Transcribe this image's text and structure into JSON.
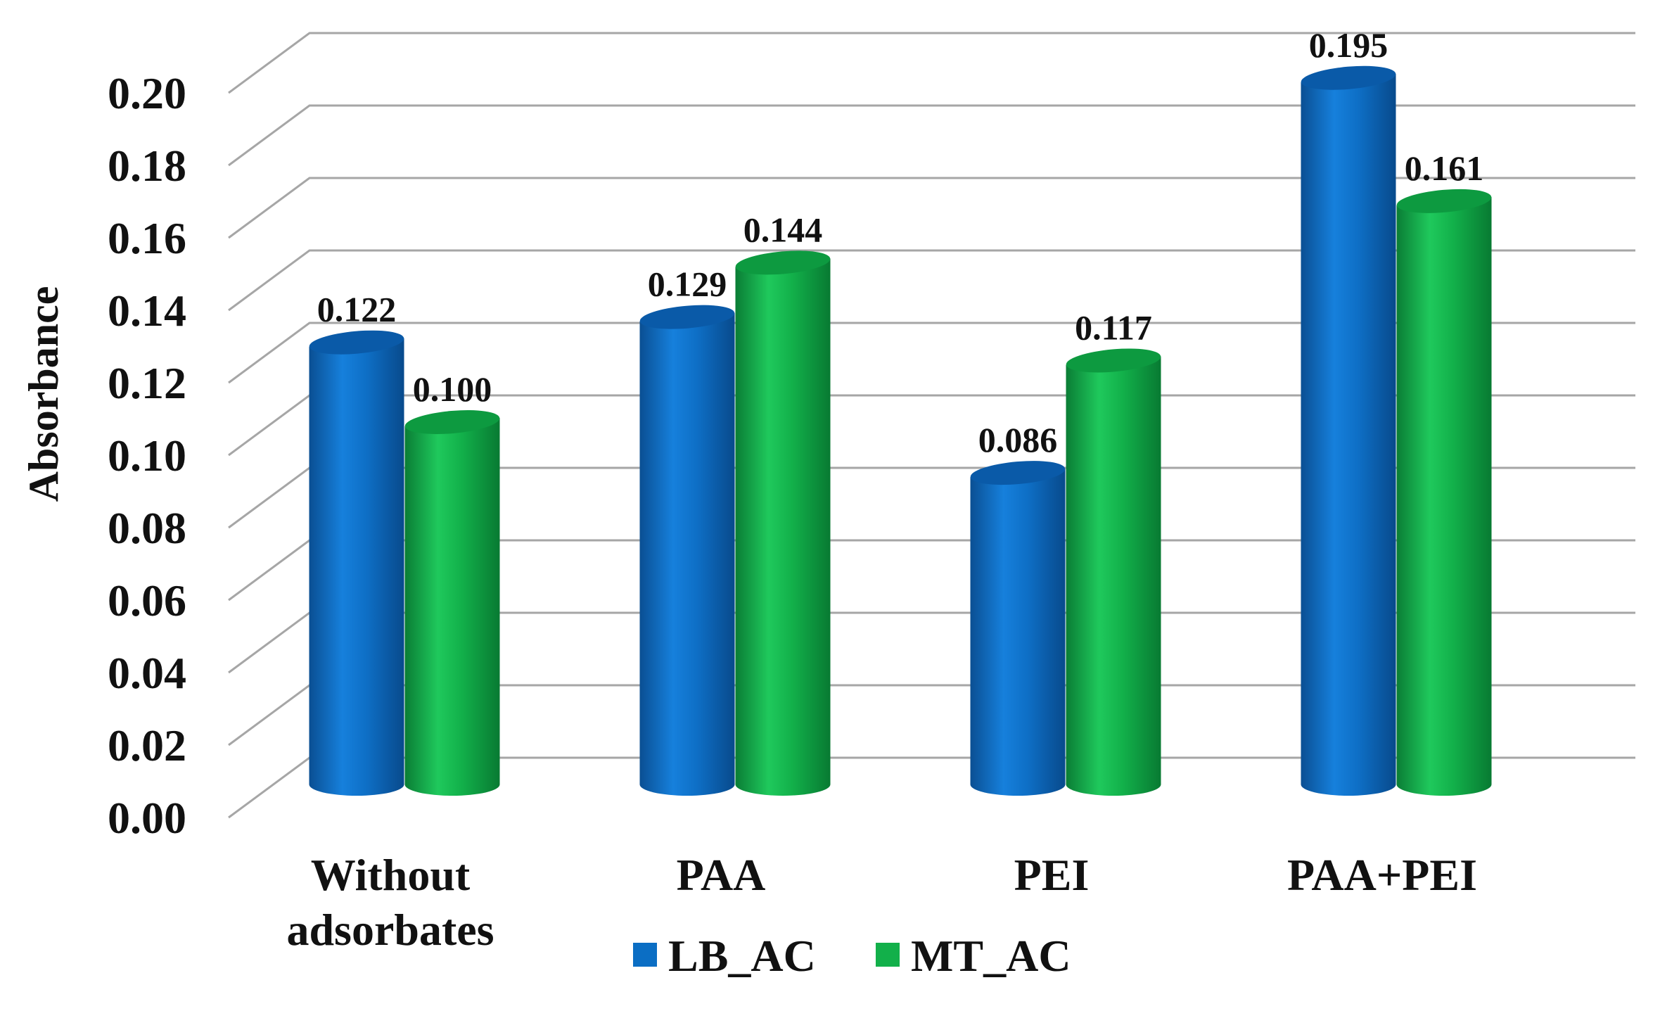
{
  "chart_data": {
    "type": "bar",
    "title": "",
    "xlabel": "",
    "ylabel": "Absorbance",
    "ylim": [
      0,
      0.2
    ],
    "ytick_step": 0.02,
    "grid": true,
    "legend_position": "bottom",
    "categories": [
      [
        "Without",
        "adsorbates"
      ],
      [
        "PAA"
      ],
      [
        "PEI"
      ],
      [
        "PAA+PEI"
      ]
    ],
    "series": [
      {
        "name": "LB_AC",
        "color": "#0b6ec4",
        "values": [
          0.122,
          0.129,
          0.086,
          0.195
        ]
      },
      {
        "name": "MT_AC",
        "color": "#12b04a",
        "values": [
          0.1,
          0.144,
          0.117,
          0.161
        ]
      }
    ],
    "data_labels": [
      [
        "0.122",
        "0.129",
        "0.086",
        "0.195"
      ],
      [
        "0.100",
        "0.144",
        "0.117",
        "0.161"
      ]
    ],
    "ytick_labels": [
      "0.00",
      "0.02",
      "0.04",
      "0.06",
      "0.08",
      "0.10",
      "0.12",
      "0.14",
      "0.16",
      "0.18",
      "0.20"
    ]
  }
}
